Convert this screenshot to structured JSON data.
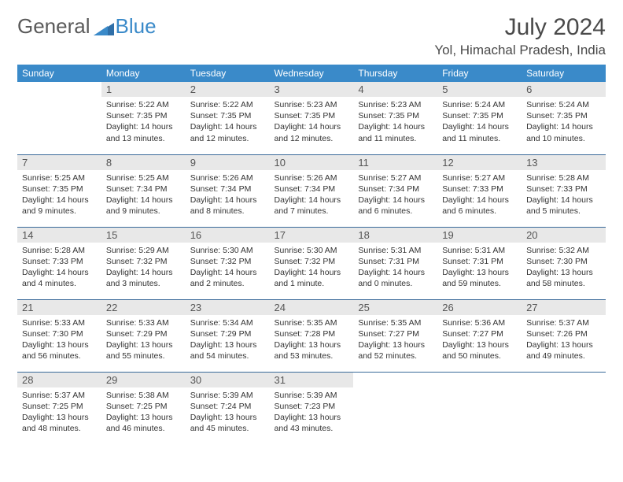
{
  "brand": {
    "general": "General",
    "blue": "Blue"
  },
  "title": "July 2024",
  "location": "Yol, Himachal Pradesh, India",
  "colors": {
    "header_bg": "#3a8ac9",
    "header_text": "#ffffff",
    "daynum_bg": "#e8e8e8",
    "border": "#3a6a9a",
    "text": "#333333"
  },
  "weekdays": [
    "Sunday",
    "Monday",
    "Tuesday",
    "Wednesday",
    "Thursday",
    "Friday",
    "Saturday"
  ],
  "weeks": [
    [
      null,
      {
        "n": "1",
        "sr": "5:22 AM",
        "ss": "7:35 PM",
        "dl": "14 hours and 13 minutes."
      },
      {
        "n": "2",
        "sr": "5:22 AM",
        "ss": "7:35 PM",
        "dl": "14 hours and 12 minutes."
      },
      {
        "n": "3",
        "sr": "5:23 AM",
        "ss": "7:35 PM",
        "dl": "14 hours and 12 minutes."
      },
      {
        "n": "4",
        "sr": "5:23 AM",
        "ss": "7:35 PM",
        "dl": "14 hours and 11 minutes."
      },
      {
        "n": "5",
        "sr": "5:24 AM",
        "ss": "7:35 PM",
        "dl": "14 hours and 11 minutes."
      },
      {
        "n": "6",
        "sr": "5:24 AM",
        "ss": "7:35 PM",
        "dl": "14 hours and 10 minutes."
      }
    ],
    [
      {
        "n": "7",
        "sr": "5:25 AM",
        "ss": "7:35 PM",
        "dl": "14 hours and 9 minutes."
      },
      {
        "n": "8",
        "sr": "5:25 AM",
        "ss": "7:34 PM",
        "dl": "14 hours and 9 minutes."
      },
      {
        "n": "9",
        "sr": "5:26 AM",
        "ss": "7:34 PM",
        "dl": "14 hours and 8 minutes."
      },
      {
        "n": "10",
        "sr": "5:26 AM",
        "ss": "7:34 PM",
        "dl": "14 hours and 7 minutes."
      },
      {
        "n": "11",
        "sr": "5:27 AM",
        "ss": "7:34 PM",
        "dl": "14 hours and 6 minutes."
      },
      {
        "n": "12",
        "sr": "5:27 AM",
        "ss": "7:33 PM",
        "dl": "14 hours and 6 minutes."
      },
      {
        "n": "13",
        "sr": "5:28 AM",
        "ss": "7:33 PM",
        "dl": "14 hours and 5 minutes."
      }
    ],
    [
      {
        "n": "14",
        "sr": "5:28 AM",
        "ss": "7:33 PM",
        "dl": "14 hours and 4 minutes."
      },
      {
        "n": "15",
        "sr": "5:29 AM",
        "ss": "7:32 PM",
        "dl": "14 hours and 3 minutes."
      },
      {
        "n": "16",
        "sr": "5:30 AM",
        "ss": "7:32 PM",
        "dl": "14 hours and 2 minutes."
      },
      {
        "n": "17",
        "sr": "5:30 AM",
        "ss": "7:32 PM",
        "dl": "14 hours and 1 minute."
      },
      {
        "n": "18",
        "sr": "5:31 AM",
        "ss": "7:31 PM",
        "dl": "14 hours and 0 minutes."
      },
      {
        "n": "19",
        "sr": "5:31 AM",
        "ss": "7:31 PM",
        "dl": "13 hours and 59 minutes."
      },
      {
        "n": "20",
        "sr": "5:32 AM",
        "ss": "7:30 PM",
        "dl": "13 hours and 58 minutes."
      }
    ],
    [
      {
        "n": "21",
        "sr": "5:33 AM",
        "ss": "7:30 PM",
        "dl": "13 hours and 56 minutes."
      },
      {
        "n": "22",
        "sr": "5:33 AM",
        "ss": "7:29 PM",
        "dl": "13 hours and 55 minutes."
      },
      {
        "n": "23",
        "sr": "5:34 AM",
        "ss": "7:29 PM",
        "dl": "13 hours and 54 minutes."
      },
      {
        "n": "24",
        "sr": "5:35 AM",
        "ss": "7:28 PM",
        "dl": "13 hours and 53 minutes."
      },
      {
        "n": "25",
        "sr": "5:35 AM",
        "ss": "7:27 PM",
        "dl": "13 hours and 52 minutes."
      },
      {
        "n": "26",
        "sr": "5:36 AM",
        "ss": "7:27 PM",
        "dl": "13 hours and 50 minutes."
      },
      {
        "n": "27",
        "sr": "5:37 AM",
        "ss": "7:26 PM",
        "dl": "13 hours and 49 minutes."
      }
    ],
    [
      {
        "n": "28",
        "sr": "5:37 AM",
        "ss": "7:25 PM",
        "dl": "13 hours and 48 minutes."
      },
      {
        "n": "29",
        "sr": "5:38 AM",
        "ss": "7:25 PM",
        "dl": "13 hours and 46 minutes."
      },
      {
        "n": "30",
        "sr": "5:39 AM",
        "ss": "7:24 PM",
        "dl": "13 hours and 45 minutes."
      },
      {
        "n": "31",
        "sr": "5:39 AM",
        "ss": "7:23 PM",
        "dl": "13 hours and 43 minutes."
      },
      null,
      null,
      null
    ]
  ],
  "labels": {
    "sunrise": "Sunrise:",
    "sunset": "Sunset:",
    "daylight": "Daylight:"
  }
}
